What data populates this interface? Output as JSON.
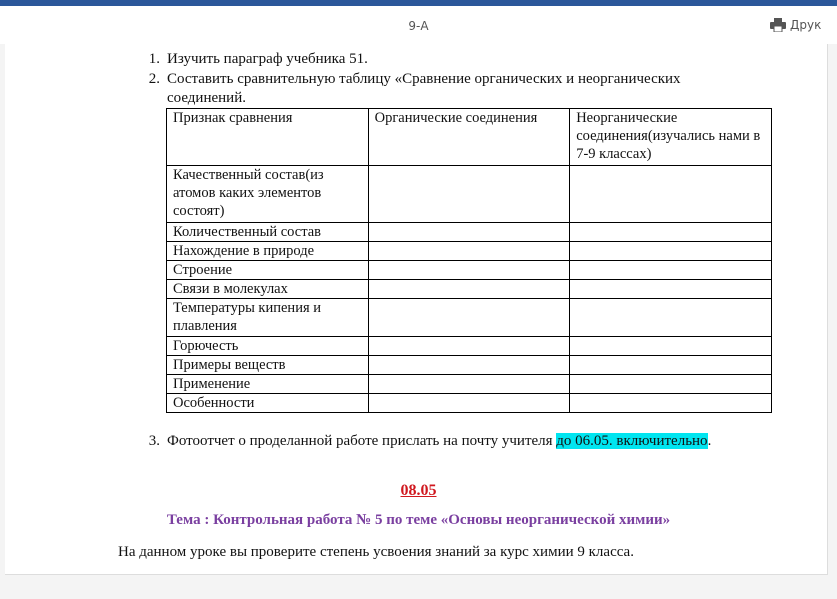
{
  "header": {
    "title": "9-А",
    "print_label": "Друк"
  },
  "list": [
    {
      "num": "1.",
      "text": "Изучить параграф учебника 51."
    },
    {
      "num": "2.",
      "text": "Составить сравнительную таблицу «Сравнение органических и неорганических",
      "text2": "соединений."
    },
    {
      "num": "3.",
      "text": "Фотоотчет о проделанной работе прислать на почту учителя ",
      "highlight": "до 06.05. включительно",
      "tail": "."
    }
  ],
  "table": {
    "headers": [
      "Признак сравнения",
      "Органические соединения",
      "Неорганические соединения(изучались нами в 7-9 классах)"
    ],
    "rows": [
      "Качественный состав(из атомов каких элементов состоят)",
      "Количественный состав",
      "Нахождение в природе",
      "Строение",
      "Связи в молекулах",
      "Температуры кипения и плавления",
      "Горючесть",
      "Примеры веществ",
      "Применение",
      "Особенности"
    ]
  },
  "date": "08.05",
  "topic": "Тема : Контрольная работа № 5 по теме «Основы неорганической химии»",
  "intro": "На данном уроке вы проверите степень усвоения знаний за курс химии 9 класса.",
  "colors": {
    "accent": "#2b579a",
    "highlight": "#00e5f0",
    "date": "#d0171e",
    "topic": "#7a3fa0"
  }
}
